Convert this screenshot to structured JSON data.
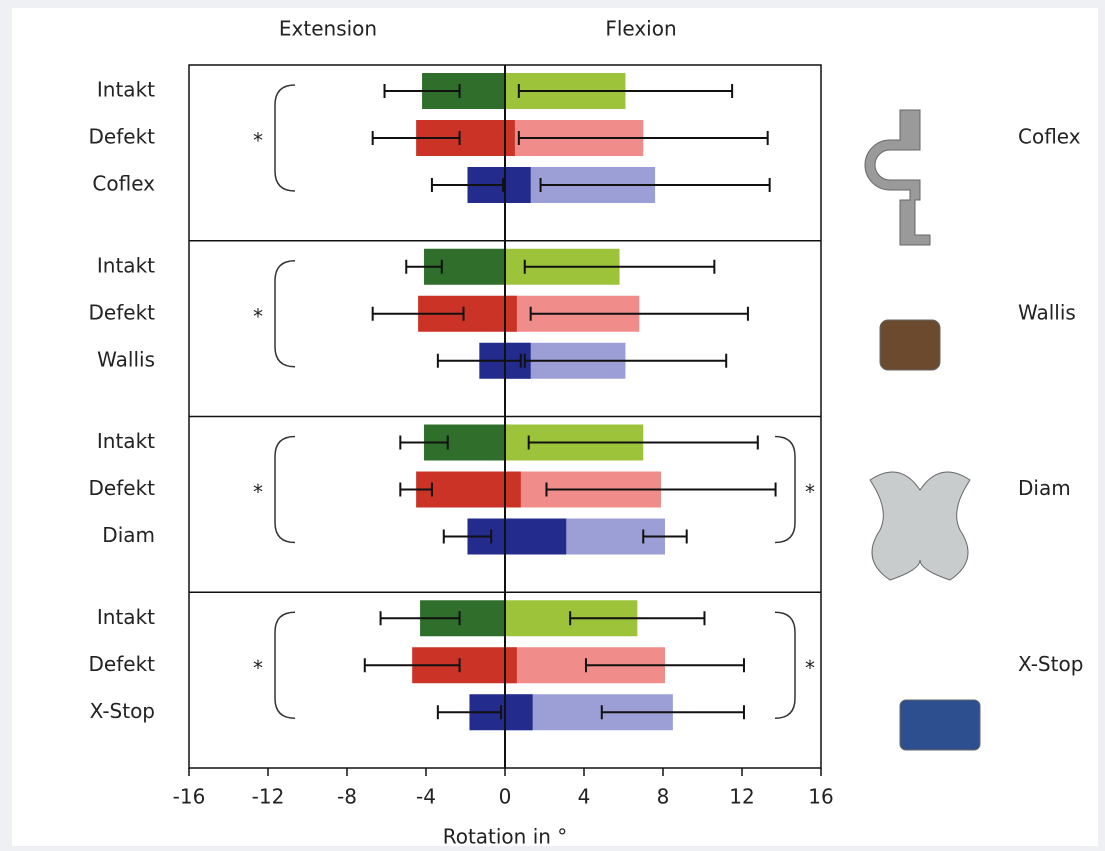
{
  "chart_data": {
    "type": "range-bar",
    "header_left": "Extension",
    "header_right": "Flexion",
    "x_label": "Rotation in °",
    "xlim": [
      -16,
      16
    ],
    "xticks": [
      -16,
      -12,
      -8,
      -4,
      0,
      4,
      8,
      12,
      16
    ],
    "dark_colors": [
      "#2f6e2b",
      "#cc3327",
      "#232b8c"
    ],
    "light_colors": [
      "#9dc33b",
      "#f08c8a",
      "#9c9fd6"
    ],
    "groups": [
      {
        "name": "Coflex",
        "categories": [
          "Intakt",
          "Defekt",
          "Coflex"
        ],
        "extension": [
          -4.2,
          -4.5,
          -1.9
        ],
        "extension_error": [
          1.9,
          2.2,
          1.8
        ],
        "flexion": [
          6.1,
          7.0,
          7.6
        ],
        "flexion_error": [
          5.4,
          6.3,
          5.8
        ],
        "neutral_zone": [
          null,
          0.5,
          1.3
        ],
        "left_marker": "*",
        "right_marker": null
      },
      {
        "name": "Wallis",
        "categories": [
          "Intakt",
          "Defekt",
          "Wallis"
        ],
        "extension": [
          -4.1,
          -4.4,
          -1.3
        ],
        "extension_error": [
          0.9,
          2.3,
          2.1
        ],
        "flexion": [
          5.8,
          6.8,
          6.1
        ],
        "flexion_error": [
          4.8,
          5.5,
          5.1
        ],
        "neutral_zone": [
          null,
          0.6,
          1.3
        ],
        "left_marker": "*",
        "right_marker": null
      },
      {
        "name": "Diam",
        "categories": [
          "Intakt",
          "Defekt",
          "Diam"
        ],
        "extension": [
          -4.1,
          -4.5,
          -1.9
        ],
        "extension_error": [
          1.2,
          0.8,
          1.2
        ],
        "flexion": [
          7.0,
          7.9,
          8.1
        ],
        "flexion_error": [
          5.8,
          5.8,
          1.1
        ],
        "neutral_zone": [
          null,
          0.8,
          3.1
        ],
        "left_marker": "*",
        "right_marker": "*"
      },
      {
        "name": "X-Stop",
        "categories": [
          "Intakt",
          "Defekt",
          "X-Stop"
        ],
        "extension": [
          -4.3,
          -4.7,
          -1.8
        ],
        "extension_error": [
          2.0,
          2.4,
          1.6
        ],
        "flexion": [
          6.7,
          8.1,
          8.5
        ],
        "flexion_error": [
          3.4,
          4.0,
          3.6
        ],
        "neutral_zone": [
          null,
          0.6,
          1.4
        ],
        "left_marker": "*",
        "right_marker": "*"
      }
    ]
  }
}
